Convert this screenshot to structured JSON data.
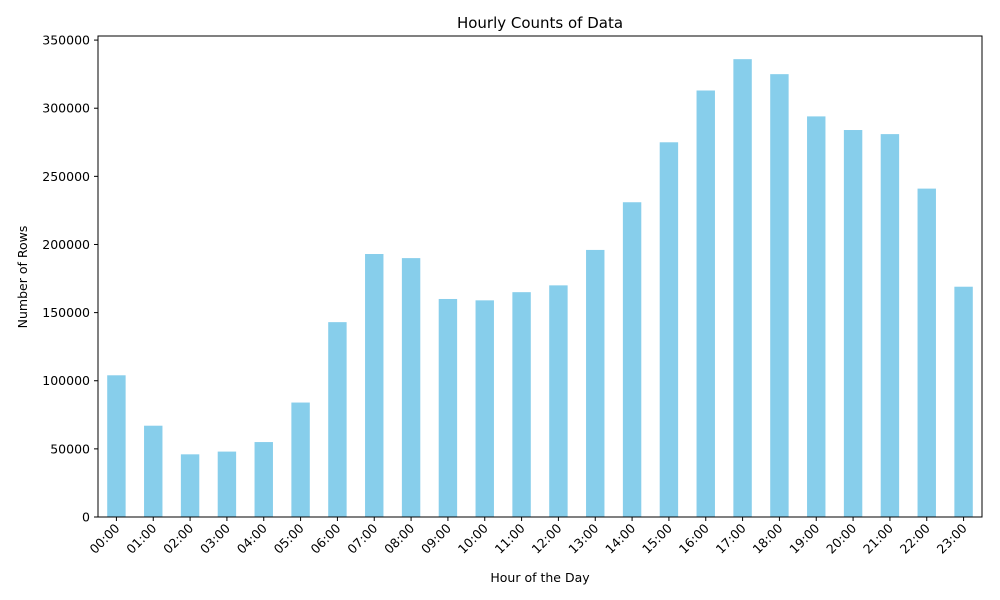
{
  "chart_data": {
    "type": "bar",
    "title": "Hourly Counts of Data",
    "xlabel": "Hour of the Day",
    "ylabel": "Number of Rows",
    "categories": [
      "00:00",
      "01:00",
      "02:00",
      "03:00",
      "04:00",
      "05:00",
      "06:00",
      "07:00",
      "08:00",
      "09:00",
      "10:00",
      "11:00",
      "12:00",
      "13:00",
      "14:00",
      "15:00",
      "16:00",
      "17:00",
      "18:00",
      "19:00",
      "20:00",
      "21:00",
      "22:00",
      "23:00"
    ],
    "values": [
      104000,
      67000,
      46000,
      48000,
      55000,
      84000,
      143000,
      193000,
      190000,
      160000,
      159000,
      165000,
      170000,
      196000,
      231000,
      275000,
      313000,
      336000,
      325000,
      294000,
      284000,
      281000,
      241000,
      169000
    ],
    "ylim": [
      0,
      353000
    ],
    "yticks": [
      0,
      50000,
      100000,
      150000,
      200000,
      250000,
      300000,
      350000
    ],
    "yticklabels": [
      "0",
      "50000",
      "100000",
      "150000",
      "200000",
      "250000",
      "300000",
      "350000"
    ],
    "bar_color": "#87ceeb",
    "grid": false,
    "legend": "none"
  }
}
